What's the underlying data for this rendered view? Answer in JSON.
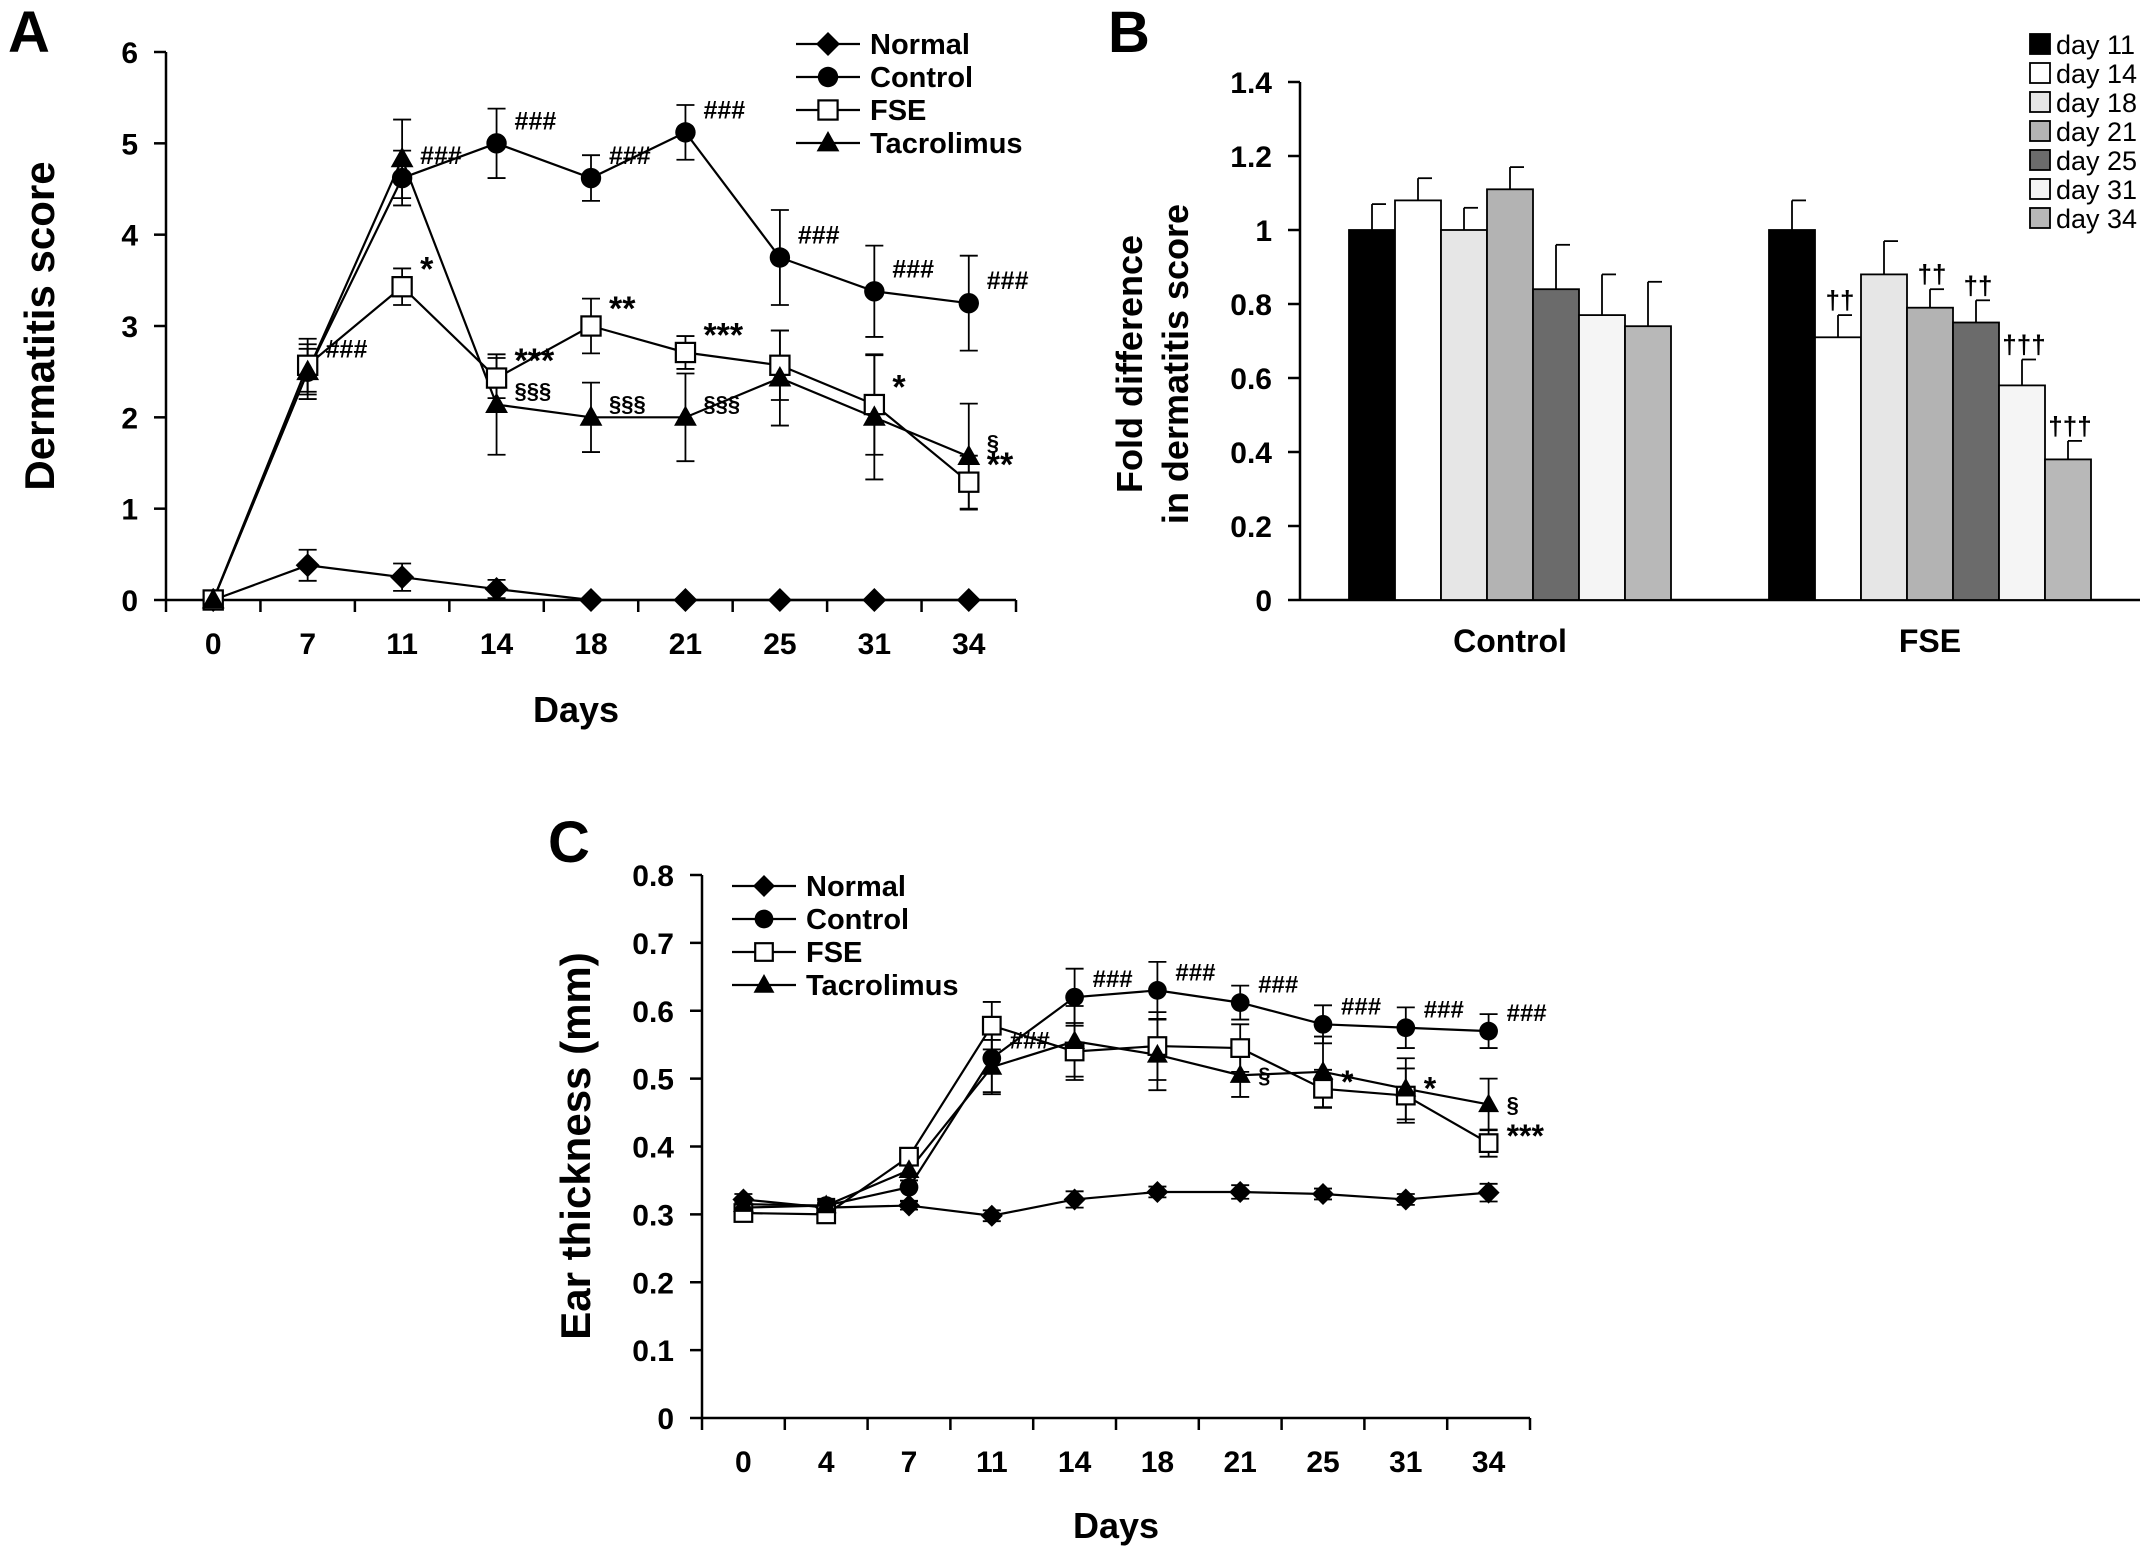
{
  "panels": {
    "a": "A",
    "b": "B",
    "c": "C"
  },
  "chart_data": [
    {
      "id": "A",
      "type": "line",
      "xlabel": "Days",
      "ylabel": "Dermatitis score",
      "ylim": [
        0,
        6
      ],
      "yticks": [
        "0",
        "1",
        "2",
        "3",
        "4",
        "5",
        "6"
      ],
      "categories": [
        "0",
        "7",
        "11",
        "14",
        "18",
        "21",
        "25",
        "31",
        "34"
      ],
      "series": [
        {
          "name": "Normal",
          "marker": "diamond",
          "values": [
            0,
            0.38,
            0.25,
            0.12,
            0,
            0,
            0,
            0,
            0
          ],
          "errors": [
            0,
            0.17,
            0.15,
            0.1,
            0,
            0,
            0,
            0,
            0
          ]
        },
        {
          "name": "Control",
          "marker": "circle",
          "values": [
            0,
            2.5,
            4.62,
            5.0,
            4.62,
            5.12,
            3.75,
            3.38,
            3.25
          ],
          "errors": [
            0,
            0.25,
            0.3,
            0.38,
            0.25,
            0.3,
            0.52,
            0.5,
            0.52
          ]
        },
        {
          "name": "FSE",
          "marker": "square",
          "values": [
            0,
            2.57,
            3.43,
            2.43,
            3.0,
            2.71,
            2.57,
            2.14,
            1.29
          ],
          "errors": [
            0,
            0.29,
            0.2,
            0.22,
            0.3,
            0.18,
            0.38,
            0.55,
            0.29
          ]
        },
        {
          "name": "Tacrolimus",
          "marker": "triangle",
          "values": [
            0,
            2.5,
            4.83,
            2.14,
            2.0,
            2.0,
            2.43,
            2.0,
            1.57
          ],
          "errors": [
            0,
            0.3,
            0.43,
            0.55,
            0.38,
            0.48,
            0.52,
            0.68,
            0.58
          ]
        }
      ],
      "annotations": [
        {
          "series": "Control",
          "index": 1,
          "text": "###"
        },
        {
          "series": "Control",
          "index": 2,
          "text": "###"
        },
        {
          "series": "Control",
          "index": 3,
          "text": "###"
        },
        {
          "series": "Control",
          "index": 4,
          "text": "###"
        },
        {
          "series": "Control",
          "index": 5,
          "text": "###"
        },
        {
          "series": "Control",
          "index": 6,
          "text": "###"
        },
        {
          "series": "Control",
          "index": 7,
          "text": "###"
        },
        {
          "series": "Control",
          "index": 8,
          "text": "###"
        },
        {
          "series": "FSE",
          "index": 2,
          "text": "*"
        },
        {
          "series": "FSE",
          "index": 3,
          "text": "***"
        },
        {
          "series": "FSE",
          "index": 4,
          "text": "**"
        },
        {
          "series": "FSE",
          "index": 5,
          "text": "***"
        },
        {
          "series": "FSE",
          "index": 7,
          "text": "*"
        },
        {
          "series": "FSE",
          "index": 8,
          "text": "**"
        },
        {
          "series": "Tacrolimus",
          "index": 3,
          "text": "§§§"
        },
        {
          "series": "Tacrolimus",
          "index": 4,
          "text": "§§§"
        },
        {
          "series": "Tacrolimus",
          "index": 5,
          "text": "§§§"
        },
        {
          "series": "Tacrolimus",
          "index": 8,
          "text": "§"
        }
      ]
    },
    {
      "id": "B",
      "type": "bar",
      "ylabel_line1": "Fold difference",
      "ylabel_line2": "in dermatitis score",
      "ylim": [
        0,
        1.4
      ],
      "yticks": [
        "0",
        "0.2",
        "0.4",
        "0.6",
        "0.8",
        "1",
        "1.2",
        "1.4"
      ],
      "categories": [
        "Control",
        "FSE"
      ],
      "series": [
        {
          "name": "day 11",
          "color": "#000000",
          "values": [
            1.0,
            1.0
          ],
          "errors": [
            0.07,
            0.08
          ]
        },
        {
          "name": "day 14",
          "color": "#ffffff",
          "values": [
            1.08,
            0.71
          ],
          "errors": [
            0.06,
            0.06
          ]
        },
        {
          "name": "day 18",
          "color": "#e6e6e6",
          "values": [
            1.0,
            0.88
          ],
          "errors": [
            0.06,
            0.09
          ]
        },
        {
          "name": "day 21",
          "color": "#b3b3b3",
          "values": [
            1.11,
            0.79
          ],
          "errors": [
            0.06,
            0.05
          ]
        },
        {
          "name": "day 25",
          "color": "#6b6b6b",
          "values": [
            0.84,
            0.75
          ],
          "errors": [
            0.12,
            0.06
          ]
        },
        {
          "name": "day 31",
          "color": "#f5f5f5",
          "values": [
            0.77,
            0.58
          ],
          "errors": [
            0.11,
            0.07
          ]
        },
        {
          "name": "day 34",
          "color": "#b8b8b8",
          "values": [
            0.74,
            0.38
          ],
          "errors": [
            0.12,
            0.05
          ]
        }
      ],
      "annotations": [
        {
          "category": 1,
          "series": 1,
          "text": "††"
        },
        {
          "category": 1,
          "series": 3,
          "text": "††"
        },
        {
          "category": 1,
          "series": 4,
          "text": "††"
        },
        {
          "category": 1,
          "series": 5,
          "text": "†††"
        },
        {
          "category": 1,
          "series": 6,
          "text": "†††"
        }
      ]
    },
    {
      "id": "C",
      "type": "line",
      "xlabel": "Days",
      "ylabel": "Ear thickness (mm)",
      "ylim": [
        0,
        0.8
      ],
      "yticks": [
        "0",
        "0.1",
        "0.2",
        "0.3",
        "0.4",
        "0.5",
        "0.6",
        "0.7",
        "0.8"
      ],
      "categories": [
        "0",
        "4",
        "7",
        "11",
        "14",
        "18",
        "21",
        "25",
        "31",
        "34"
      ],
      "series": [
        {
          "name": "Normal",
          "marker": "diamond",
          "values": [
            0.322,
            0.31,
            0.313,
            0.298,
            0.322,
            0.333,
            0.333,
            0.33,
            0.322,
            0.332
          ],
          "errors": [
            0.008,
            0.008,
            0.006,
            0.008,
            0.012,
            0.008,
            0.01,
            0.008,
            0.008,
            0.013
          ]
        },
        {
          "name": "Control",
          "marker": "circle",
          "values": [
            0.31,
            0.313,
            0.34,
            0.53,
            0.62,
            0.63,
            0.612,
            0.58,
            0.575,
            0.57
          ],
          "errors": [
            0.008,
            0.01,
            0.02,
            0.05,
            0.042,
            0.042,
            0.025,
            0.028,
            0.03,
            0.025
          ]
        },
        {
          "name": "FSE",
          "marker": "square",
          "values": [
            0.302,
            0.3,
            0.385,
            0.578,
            0.54,
            0.548,
            0.545,
            0.485,
            0.475,
            0.405
          ],
          "errors": [
            0.006,
            0.006,
            0.012,
            0.035,
            0.042,
            0.05,
            0.035,
            0.028,
            0.04,
            0.02
          ]
        },
        {
          "name": "Tacrolimus",
          "marker": "triangle",
          "values": [
            0.315,
            0.313,
            0.365,
            0.517,
            0.555,
            0.535,
            0.505,
            0.51,
            0.485,
            0.462
          ],
          "errors": [
            0.006,
            0.008,
            0.015,
            0.04,
            0.052,
            0.052,
            0.032,
            0.052,
            0.045,
            0.038
          ]
        }
      ],
      "annotations": [
        {
          "series": "Control",
          "index": 3,
          "text": "###"
        },
        {
          "series": "Control",
          "index": 4,
          "text": "###"
        },
        {
          "series": "Control",
          "index": 5,
          "text": "###"
        },
        {
          "series": "Control",
          "index": 6,
          "text": "###"
        },
        {
          "series": "Control",
          "index": 7,
          "text": "###"
        },
        {
          "series": "Control",
          "index": 8,
          "text": "###"
        },
        {
          "series": "Control",
          "index": 9,
          "text": "###"
        },
        {
          "series": "FSE",
          "index": 7,
          "text": "*"
        },
        {
          "series": "FSE",
          "index": 8,
          "text": "*"
        },
        {
          "series": "FSE",
          "index": 9,
          "text": "***"
        },
        {
          "series": "Tacrolimus",
          "index": 6,
          "text": "§"
        },
        {
          "series": "Tacrolimus",
          "index": 9,
          "text": "§"
        }
      ]
    }
  ]
}
